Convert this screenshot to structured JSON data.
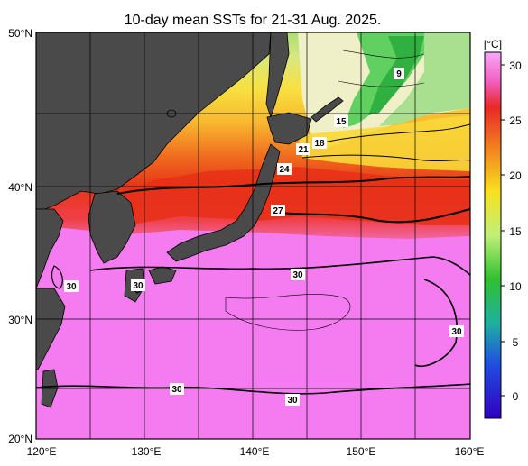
{
  "title": "10-day mean SSTs for 21-31 Aug. 2025.",
  "axes": {
    "lat_labels": [
      "50°N",
      "40°N",
      "30°N",
      "20°N"
    ],
    "lon_labels": [
      "120°E",
      "130°E",
      "140°E",
      "150°E",
      "160°E"
    ]
  },
  "colorbar": {
    "unit": "[°C]",
    "ticks": [
      "30",
      "25",
      "20",
      "15",
      "10",
      "5",
      "0"
    ]
  },
  "contour_labels": [
    "9",
    "15",
    "18",
    "21",
    "24",
    "27",
    "30",
    "30",
    "30",
    "30",
    "30",
    "30"
  ],
  "colors": {
    "land": "#4a4a4a",
    "warm_pink": "#f47cf0",
    "hot_red": "#e83018",
    "orange": "#f07820",
    "yellow": "#f8d020",
    "green": "#30c030",
    "frame": "#000000"
  }
}
